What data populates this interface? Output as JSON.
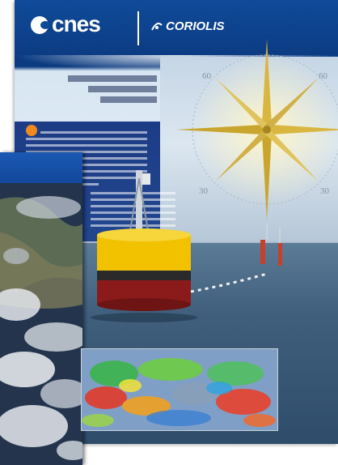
{
  "cover": {
    "logo_cnes": "cnes",
    "logo_coriolis": "CORIOLIS"
  },
  "colors": {
    "cnes_blue": "#0b3a80",
    "buoy_yellow": "#f2c200",
    "buoy_red": "#8b1a1a",
    "compass_gold": "#d8b640"
  },
  "compass": {
    "labels": [
      "60",
      "60",
      "30",
      "30"
    ]
  }
}
